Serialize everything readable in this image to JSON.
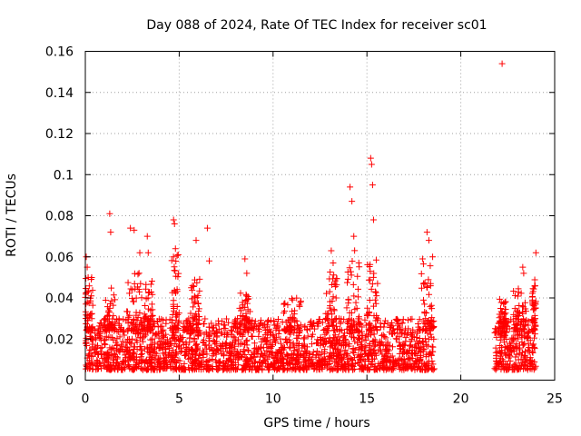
{
  "chart_data": {
    "type": "scatter",
    "title": "Day 088 of 2024, Rate Of TEC Index for receiver sc01",
    "xlabel": "GPS time / hours",
    "ylabel": "ROTI / TECUs",
    "xlim": [
      0,
      25
    ],
    "ylim": [
      0,
      0.16
    ],
    "x_ticks": [
      0,
      5,
      10,
      15,
      20,
      25
    ],
    "x_tick_labels": [
      "0",
      "5",
      "10",
      "15",
      "20",
      "25"
    ],
    "y_ticks": [
      0,
      0.02,
      0.04,
      0.06,
      0.08,
      0.1,
      0.12,
      0.14,
      0.16
    ],
    "y_tick_labels": [
      "0",
      "0.02",
      "0.04",
      "0.06",
      "0.08",
      "0.1",
      "0.12",
      "0.14",
      "0.16"
    ],
    "grid": true,
    "marker": "+",
    "color": "#ff0000",
    "series": [
      {
        "name": "ROTI",
        "coverage_hours": [
          [
            0,
            18.6
          ],
          [
            21.8,
            24.0
          ]
        ],
        "typical_range": [
          0.005,
          0.03
        ],
        "x": [
          0.05,
          0.1,
          0.15,
          1.3,
          1.35,
          2.4,
          2.6,
          3.3,
          3.35,
          4.7,
          4.75,
          4.8,
          5.9,
          6.5,
          6.6,
          8.5,
          8.6,
          13.1,
          13.2,
          14.1,
          14.2,
          14.3,
          15.2,
          15.25,
          15.3,
          15.35,
          18.2,
          18.3,
          18.5,
          22.2,
          23.3,
          23.35,
          24.0
        ],
        "y": [
          0.06,
          0.055,
          0.05,
          0.081,
          0.072,
          0.074,
          0.073,
          0.07,
          0.062,
          0.078,
          0.076,
          0.064,
          0.068,
          0.074,
          0.058,
          0.059,
          0.052,
          0.063,
          0.057,
          0.094,
          0.087,
          0.07,
          0.108,
          0.105,
          0.095,
          0.078,
          0.072,
          0.068,
          0.06,
          0.154,
          0.055,
          0.052,
          0.062
        ],
        "bursts": [
          {
            "x_range": [
              0.0,
              0.4
            ],
            "peak": 0.05
          },
          {
            "x_range": [
              1.0,
              1.6
            ],
            "peak": 0.045
          },
          {
            "x_range": [
              2.2,
              3.0
            ],
            "peak": 0.065
          },
          {
            "x_range": [
              3.1,
              3.6
            ],
            "peak": 0.05
          },
          {
            "x_range": [
              4.6,
              5.0
            ],
            "peak": 0.062
          },
          {
            "x_range": [
              5.6,
              6.1
            ],
            "peak": 0.05
          },
          {
            "x_range": [
              8.2,
              8.9
            ],
            "peak": 0.045
          },
          {
            "x_range": [
              10.5,
              11.5
            ],
            "peak": 0.04
          },
          {
            "x_range": [
              12.8,
              13.4
            ],
            "peak": 0.055
          },
          {
            "x_range": [
              13.9,
              14.6
            ],
            "peak": 0.065
          },
          {
            "x_range": [
              15.0,
              15.6
            ],
            "peak": 0.06
          },
          {
            "x_range": [
              17.9,
              18.5
            ],
            "peak": 0.06
          },
          {
            "x_range": [
              22.0,
              22.4
            ],
            "peak": 0.04
          },
          {
            "x_range": [
              22.8,
              23.5
            ],
            "peak": 0.045
          },
          {
            "x_range": [
              23.8,
              24.0
            ],
            "peak": 0.05
          }
        ]
      }
    ]
  }
}
